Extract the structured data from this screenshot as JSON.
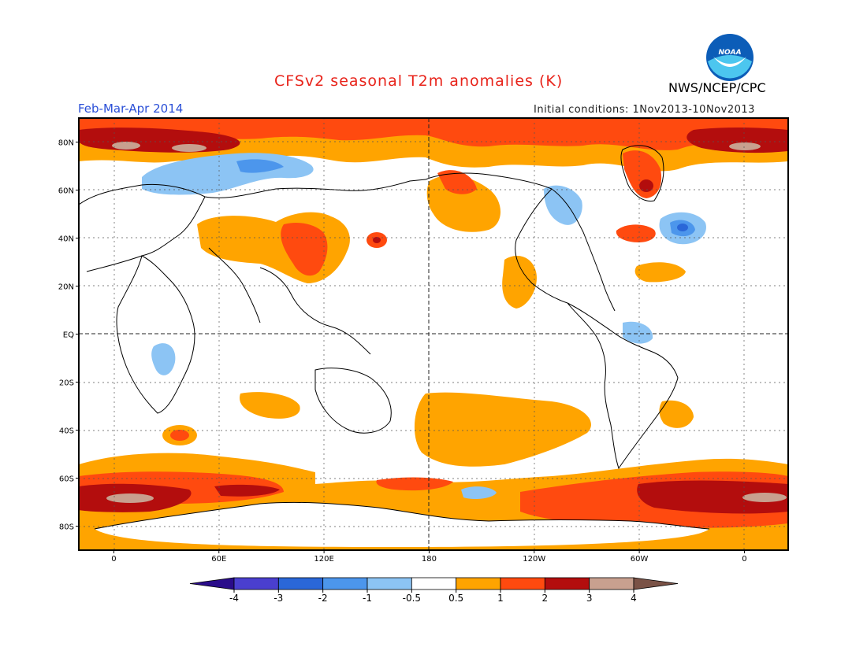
{
  "title": "CFSv2 seasonal T2m anomalies (K)",
  "organization": "NWS/NCEP/CPC",
  "logo_text": "NOAA",
  "season": "Feb-Mar-Apr 2014",
  "initial_conditions": "Initial conditions: 1Nov2013-10Nov2013",
  "lat_labels": [
    {
      "text": "80N",
      "lat": 80
    },
    {
      "text": "60N",
      "lat": 60
    },
    {
      "text": "40N",
      "lat": 40
    },
    {
      "text": "20N",
      "lat": 20
    },
    {
      "text": "EQ",
      "lat": 0
    },
    {
      "text": "20S",
      "lat": -20
    },
    {
      "text": "40S",
      "lat": -40
    },
    {
      "text": "60S",
      "lat": -60
    },
    {
      "text": "80S",
      "lat": -80
    }
  ],
  "lon_labels": [
    {
      "text": "0",
      "lon": 0
    },
    {
      "text": "60E",
      "lon": 60
    },
    {
      "text": "120E",
      "lon": 120
    },
    {
      "text": "180",
      "lon": 180
    },
    {
      "text": "120W",
      "lon": 240
    },
    {
      "text": "60W",
      "lon": 300
    },
    {
      "text": "0",
      "lon": 360
    }
  ],
  "colorbar": {
    "colors": [
      "#2a0c8a",
      "#4a3fcf",
      "#2a67d8",
      "#4c96ec",
      "#8cc4f4",
      "#ffffff",
      "#ffa400",
      "#ff4a0f",
      "#b30d0d",
      "#c8a08f",
      "#7a5246"
    ],
    "labels": [
      "-4",
      "-3",
      "-2",
      "-1",
      "-0.5",
      "0.5",
      "1",
      "2",
      "3",
      "4"
    ]
  },
  "colors": {
    "title": "#e8231a",
    "season": "#2a4fd7",
    "anomaly_0_5_1": "#ffa400",
    "anomaly_1_2": "#ff4a0f",
    "anomaly_2_3": "#b30d0d",
    "anomaly_3_4": "#c8a08f",
    "anomaly_neg_0_5_1": "#8cc4f4",
    "anomaly_neg_1_2": "#4c96ec",
    "anomaly_neg_2_3": "#2a67d8"
  }
}
